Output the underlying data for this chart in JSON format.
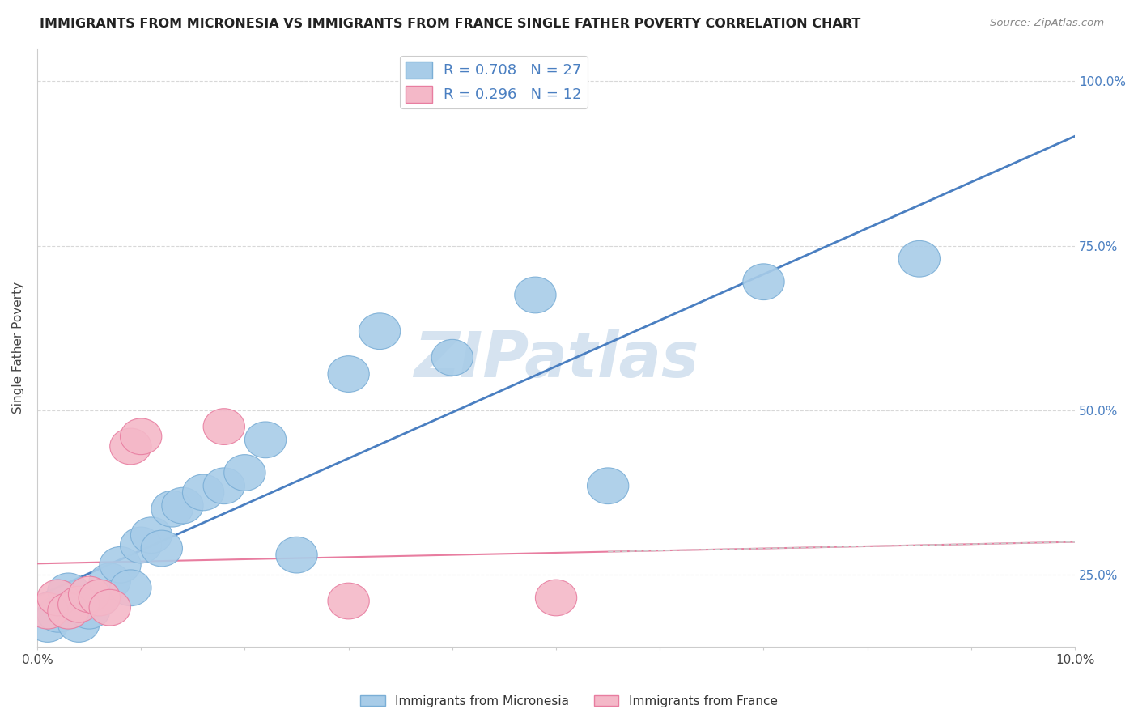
{
  "title": "IMMIGRANTS FROM MICRONESIA VS IMMIGRANTS FROM FRANCE SINGLE FATHER POVERTY CORRELATION CHART",
  "source": "Source: ZipAtlas.com",
  "ylabel": "Single Father Poverty",
  "y_tick_labels": [
    "25.0%",
    "50.0%",
    "75.0%",
    "100.0%"
  ],
  "y_tick_values": [
    0.25,
    0.5,
    0.75,
    1.0
  ],
  "R_micronesia": 0.708,
  "N_micronesia": 27,
  "R_france": 0.296,
  "N_france": 12,
  "color_micronesia": "#a8cce8",
  "color_france": "#f4b8c8",
  "color_micronesia_edge": "#7aaed6",
  "color_france_edge": "#e87da0",
  "line_color_micronesia": "#4a7fc1",
  "line_color_france": "#e87da0",
  "line_color_france_ext": "#cccccc",
  "watermark_color": "#c5d8ea",
  "micronesia_x": [
    0.001,
    0.002,
    0.003,
    0.003,
    0.004,
    0.005,
    0.006,
    0.007,
    0.008,
    0.009,
    0.01,
    0.011,
    0.012,
    0.013,
    0.014,
    0.016,
    0.018,
    0.02,
    0.022,
    0.025,
    0.03,
    0.033,
    0.04,
    0.048,
    0.055,
    0.07,
    0.085
  ],
  "micronesia_y": [
    0.175,
    0.19,
    0.195,
    0.225,
    0.175,
    0.195,
    0.215,
    0.24,
    0.265,
    0.23,
    0.295,
    0.31,
    0.29,
    0.35,
    0.355,
    0.375,
    0.385,
    0.405,
    0.455,
    0.28,
    0.555,
    0.62,
    0.58,
    0.675,
    0.385,
    0.695,
    0.73
  ],
  "france_x": [
    0.001,
    0.002,
    0.003,
    0.004,
    0.005,
    0.006,
    0.007,
    0.009,
    0.01,
    0.018,
    0.03,
    0.05
  ],
  "france_y": [
    0.195,
    0.215,
    0.195,
    0.205,
    0.22,
    0.215,
    0.2,
    0.445,
    0.46,
    0.475,
    0.21,
    0.215
  ],
  "xlim": [
    0.0,
    0.1
  ],
  "ylim": [
    0.14,
    1.05
  ],
  "background_color": "#ffffff",
  "grid_color": "#d8d8d8"
}
